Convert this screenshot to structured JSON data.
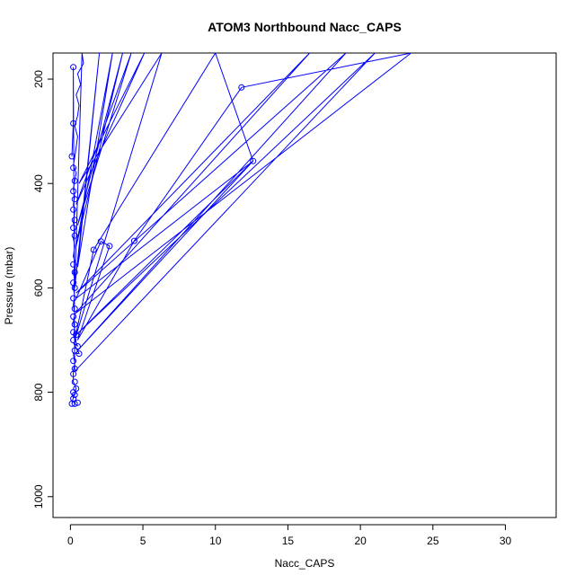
{
  "chart_data": {
    "type": "line",
    "title": "ATOM3 Northbound Nacc_CAPS",
    "xlabel": "Nacc_CAPS",
    "ylabel": "Pressure (mbar)",
    "xlim": [
      -1.2,
      33.5
    ],
    "ylim": [
      1040,
      150
    ],
    "y_reversed": true,
    "x_ticks": [
      0,
      5,
      10,
      15,
      20,
      25,
      30
    ],
    "y_ticks": [
      200,
      400,
      600,
      800,
      1000
    ],
    "grid": false,
    "legend": "none",
    "colors": {
      "series": "#0000ff"
    },
    "series": [
      {
        "points": [
          [
            0.1,
            822
          ],
          [
            0.2,
            810
          ],
          [
            0.3,
            800
          ],
          [
            0.4,
            793
          ],
          [
            0.2,
            780
          ],
          [
            0.2,
            760
          ],
          [
            0.3,
            745
          ],
          [
            0.2,
            725
          ],
          [
            0.6,
            726
          ],
          [
            0.2,
            705
          ],
          [
            0.5,
            712
          ],
          [
            0.2,
            690
          ],
          [
            0.3,
            680
          ],
          [
            0.2,
            665
          ],
          [
            0.3,
            650
          ],
          [
            0.2,
            632
          ],
          [
            0.3,
            615
          ],
          [
            0.2,
            600
          ],
          [
            0.3,
            585
          ],
          [
            0.2,
            570
          ],
          [
            0.4,
            555
          ],
          [
            0.2,
            540
          ],
          [
            0.3,
            520
          ],
          [
            0.2,
            505
          ],
          [
            0.3,
            490
          ],
          [
            0.2,
            475
          ],
          [
            0.3,
            455
          ],
          [
            0.2,
            440
          ],
          [
            0.3,
            425
          ],
          [
            0.2,
            410
          ],
          [
            0.3,
            395
          ],
          [
            0.4,
            380
          ],
          [
            0.2,
            365
          ],
          [
            0.3,
            350
          ],
          [
            0.4,
            330
          ],
          [
            0.5,
            310
          ],
          [
            0.3,
            290
          ],
          [
            0.5,
            270
          ],
          [
            0.6,
            250
          ],
          [
            0.4,
            230
          ],
          [
            0.7,
            210
          ],
          [
            0.5,
            190
          ],
          [
            0.9,
            170
          ],
          [
            0.8,
            150
          ],
          [
            0.3,
            600
          ],
          [
            2.0,
            150
          ],
          [
            0.5,
            560
          ],
          [
            2.9,
            150
          ],
          [
            0.4,
            520
          ],
          [
            3.6,
            150
          ],
          [
            0.5,
            480
          ],
          [
            4.2,
            150
          ],
          [
            0.4,
            440
          ],
          [
            5.1,
            150
          ],
          [
            0.6,
            400
          ],
          [
            6.3,
            150
          ],
          [
            0.3,
            700
          ],
          [
            1.6,
            527
          ],
          [
            10.0,
            150
          ],
          [
            12.6,
            357
          ],
          [
            0.4,
            620
          ],
          [
            2.1,
            511
          ],
          [
            2.7,
            520
          ],
          [
            0.5,
            700
          ],
          [
            4.4,
            510
          ],
          [
            11.8,
            216
          ],
          [
            23.5,
            150
          ],
          [
            0.3,
            650
          ],
          [
            16.5,
            150
          ],
          [
            0.4,
            610
          ],
          [
            19.0,
            150
          ],
          [
            0.5,
            720
          ],
          [
            12.6,
            357
          ],
          [
            0.4,
            690
          ],
          [
            21.0,
            150
          ],
          [
            0.3,
            760
          ],
          [
            0.2,
            177
          ],
          [
            0.2,
            285
          ],
          [
            0.1,
            348
          ]
        ]
      }
    ],
    "markers": [
      [
        0.2,
        177
      ],
      [
        0.2,
        285
      ],
      [
        0.1,
        348
      ],
      [
        11.8,
        216
      ],
      [
        12.6,
        357
      ],
      [
        0.2,
        370
      ],
      [
        0.3,
        395
      ],
      [
        0.2,
        415
      ],
      [
        0.3,
        430
      ],
      [
        0.2,
        450
      ],
      [
        0.3,
        470
      ],
      [
        0.2,
        485
      ],
      [
        0.3,
        500
      ],
      [
        4.4,
        510
      ],
      [
        2.1,
        511
      ],
      [
        2.7,
        520
      ],
      [
        1.6,
        527
      ],
      [
        0.2,
        555
      ],
      [
        0.3,
        570
      ],
      [
        0.2,
        590
      ],
      [
        0.3,
        600
      ],
      [
        0.2,
        620
      ],
      [
        0.3,
        640
      ],
      [
        0.2,
        655
      ],
      [
        0.3,
        670
      ],
      [
        0.2,
        685
      ],
      [
        0.4,
        690
      ],
      [
        0.2,
        700
      ],
      [
        0.5,
        712
      ],
      [
        0.3,
        720
      ],
      [
        0.6,
        726
      ],
      [
        0.2,
        740
      ],
      [
        0.3,
        755
      ],
      [
        0.2,
        765
      ],
      [
        0.3,
        780
      ],
      [
        0.4,
        793
      ],
      [
        0.2,
        800
      ],
      [
        0.3,
        805
      ],
      [
        0.2,
        812
      ],
      [
        0.1,
        822
      ],
      [
        0.5,
        820
      ],
      [
        0.3,
        822
      ]
    ]
  }
}
